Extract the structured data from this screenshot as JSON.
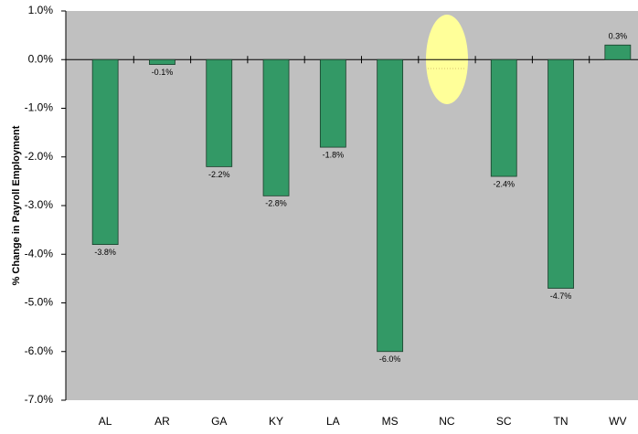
{
  "chart_data": {
    "type": "bar",
    "y_label": "% Change in Payroll Employment",
    "categories": [
      "AL",
      "AR",
      "GA",
      "KY",
      "LA",
      "MS",
      "NC",
      "SC",
      "TN",
      "WV"
    ],
    "values": [
      -3.8,
      -0.1,
      -2.2,
      -2.8,
      -1.8,
      -6.0,
      null,
      -2.4,
      -4.7,
      0.3
    ],
    "value_labels": [
      "-3.8%",
      "-0.1%",
      "-2.2%",
      "-2.8%",
      "-1.8%",
      "-6.0%",
      null,
      "-2.4%",
      "-4.7%",
      "0.3%"
    ],
    "color": "#339966",
    "ylim": [
      -7,
      1
    ],
    "yticks": [
      {
        "value": -7,
        "label": "-7.0%"
      },
      {
        "value": -6,
        "label": "-6.0%"
      },
      {
        "value": -5,
        "label": "-5.0%"
      },
      {
        "value": -4,
        "label": "-4.0%"
      },
      {
        "value": -3,
        "label": "-3.0%"
      },
      {
        "value": -2,
        "label": "-2.0%"
      },
      {
        "value": -1,
        "label": "-1.0%"
      },
      {
        "value": 0,
        "label": "0.0%"
      },
      {
        "value": 1,
        "label": "1.0%"
      }
    ],
    "grid": false
  }
}
